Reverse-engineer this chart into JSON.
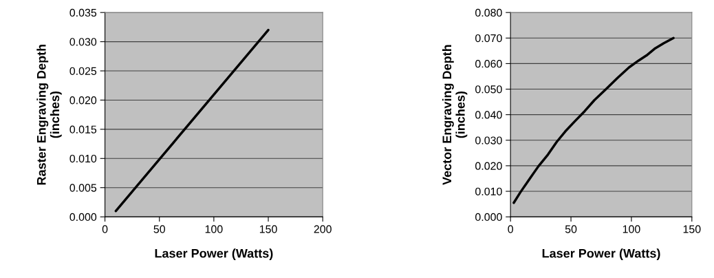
{
  "chart_data": [
    {
      "type": "line",
      "xlabel": "Laser Power (Watts)",
      "ylabel": "Raster Engraving Depth\n(inches)",
      "x": [
        10,
        150
      ],
      "series": [
        {
          "color": "#000000",
          "values": [
            0.001,
            0.032
          ]
        }
      ],
      "xlim": [
        0,
        200
      ],
      "xticks": [
        0,
        50,
        100,
        150,
        200
      ],
      "ylim": [
        0,
        0.035
      ],
      "yticks": [
        {
          "value": 0,
          "label": "0.000"
        },
        {
          "value": 0.005,
          "label": "0.005"
        },
        {
          "value": 0.01,
          "label": "0.010"
        },
        {
          "value": 0.015,
          "label": "0.015"
        },
        {
          "value": 0.02,
          "label": "0.020"
        },
        {
          "value": 0.025,
          "label": "0.025"
        },
        {
          "value": 0.03,
          "label": "0.030"
        },
        {
          "value": 0.035,
          "label": "0.035"
        }
      ],
      "grid": "y",
      "legend": false,
      "marker": "none",
      "line_style": "solid"
    },
    {
      "type": "line",
      "xlabel": "Laser Power (Watts)",
      "ylabel": "Vector Engraving Depth\n(inches)",
      "x": [
        2.7,
        8,
        15.1,
        23.1,
        31,
        38.3,
        45.4,
        53.4,
        61.4,
        69.4,
        79,
        88.5,
        98,
        106,
        112.5,
        119.7,
        126.8,
        134.8
      ],
      "series": [
        {
          "color": "#000000",
          "values": [
            0.0055,
            0.0095,
            0.0144,
            0.0198,
            0.0244,
            0.0294,
            0.0335,
            0.0375,
            0.0414,
            0.0457,
            0.05,
            0.0544,
            0.0585,
            0.0612,
            0.0632,
            0.066,
            0.068,
            0.07
          ]
        }
      ],
      "xlim": [
        0,
        150
      ],
      "xticks": [
        0,
        50,
        100,
        150
      ],
      "ylim": [
        0,
        0.08
      ],
      "yticks": [
        {
          "value": 0,
          "label": "0.000"
        },
        {
          "value": 0.01,
          "label": "0.010"
        },
        {
          "value": 0.02,
          "label": "0.020"
        },
        {
          "value": 0.03,
          "label": "0.030"
        },
        {
          "value": 0.04,
          "label": "0.040"
        },
        {
          "value": 0.05,
          "label": "0.050"
        },
        {
          "value": 0.06,
          "label": "0.060"
        },
        {
          "value": 0.07,
          "label": "0.070"
        },
        {
          "value": 0.08,
          "label": "0.080"
        }
      ],
      "grid": "y",
      "legend": false,
      "marker": "none",
      "line_style": "solid"
    }
  ]
}
